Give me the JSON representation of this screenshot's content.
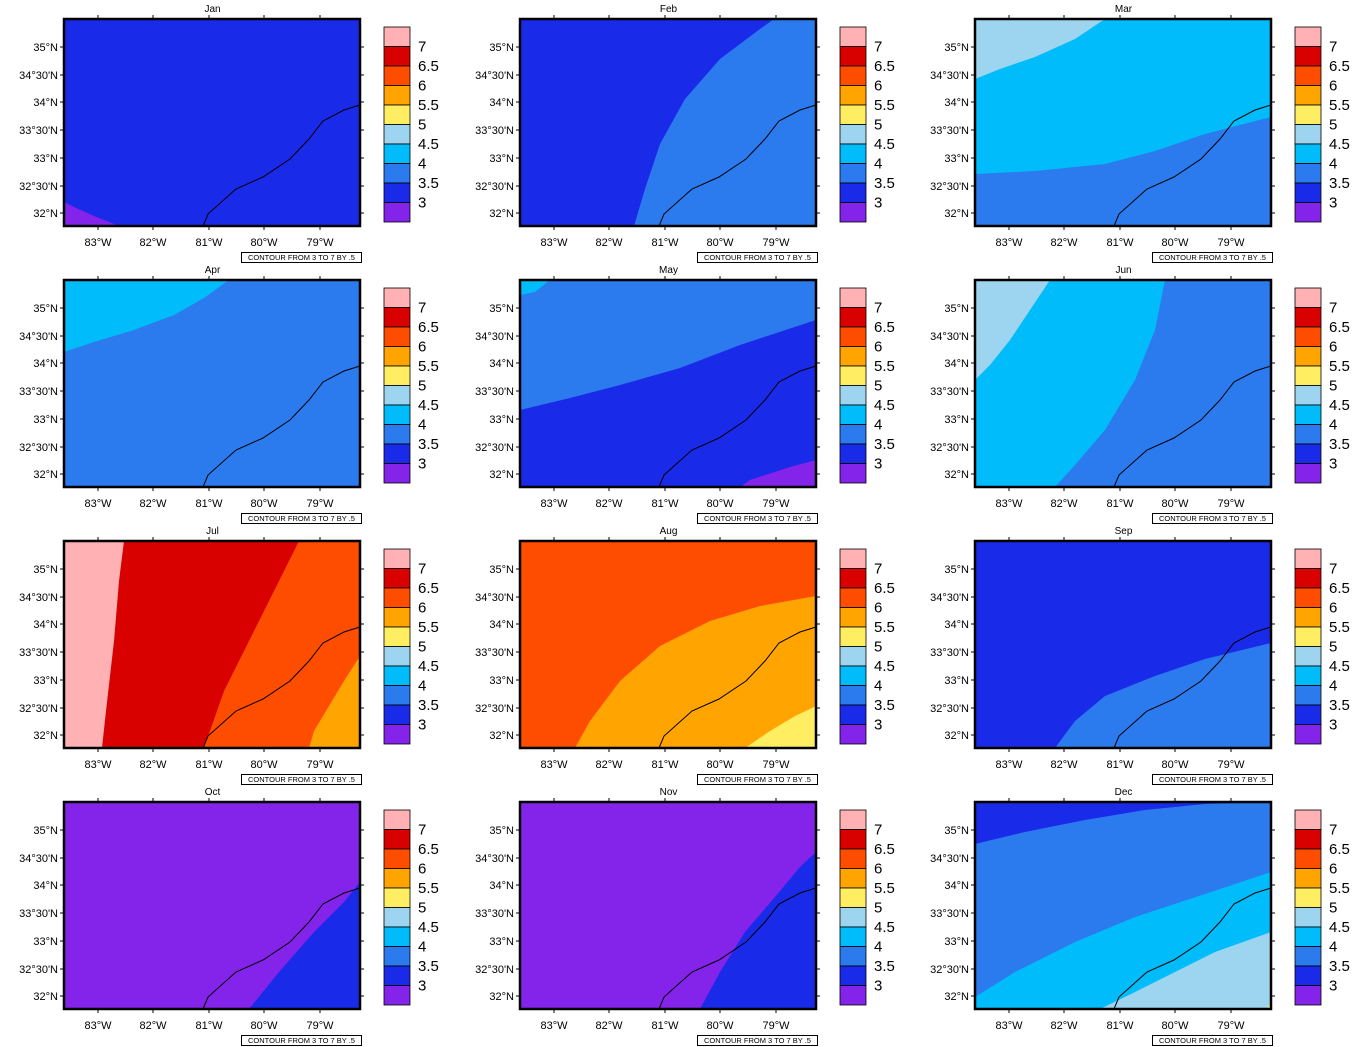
{
  "colors": {
    "c3": "#8424ea",
    "c3_5": "#1a2ae9",
    "c4": "#2b7bee",
    "c4_5": "#00bcfb",
    "c5": "#9dd4f0",
    "c5_5": "#ffee62",
    "c6": "#ffa400",
    "c6_5": "#ff4d00",
    "c7": "#d90000",
    "c7plus": "#ffb1b4"
  },
  "colorbar_labels": [
    "3",
    "3.5",
    "4",
    "4.5",
    "5",
    "5.5",
    "6",
    "6.5",
    "7"
  ],
  "lat_labels": [
    "35°N",
    "34°30'N",
    "34°N",
    "33°30'N",
    "33°N",
    "32°30'N",
    "32°N"
  ],
  "lon_labels": [
    "83°W",
    "82°W",
    "81°W",
    "80°W",
    "79°W"
  ],
  "contour_info": "CONTOUR FROM 3 TO 7 BY .5",
  "panels": [
    {
      "title": "Jan"
    },
    {
      "title": "Feb"
    },
    {
      "title": "Mar"
    },
    {
      "title": "Apr"
    },
    {
      "title": "May"
    },
    {
      "title": "Jun"
    },
    {
      "title": "Jul"
    },
    {
      "title": "Aug"
    },
    {
      "title": "Sep"
    },
    {
      "title": "Oct"
    },
    {
      "title": "Nov"
    },
    {
      "title": "Dec"
    }
  ]
}
